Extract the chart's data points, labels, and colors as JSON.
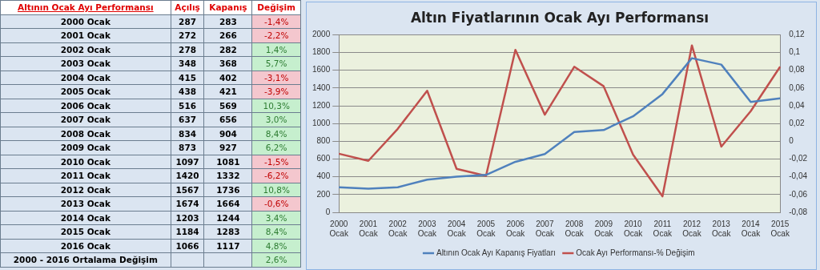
{
  "chart_data": [
    {
      "type": "heatmap",
      "title": "Altının Ocak Ayı Performansı",
      "categories": [
        "Açılış",
        "Kapanış",
        "Değişim"
      ],
      "y_categories": [
        "2000 Ocak",
        "2001 Ocak",
        "2002 Ocak",
        "2003 Ocak",
        "2004 Ocak",
        "2005 Ocak",
        "2006 Ocak",
        "2007 Ocak",
        "2008 Ocak",
        "2009 Ocak",
        "2010 Ocak",
        "2011 Ocak",
        "2012 Ocak",
        "2013 Ocak",
        "2014 Ocak",
        "2015 Ocak",
        "2016 Ocak",
        "2000 - 2016 Ortalama Değişim"
      ],
      "cells": [
        [
          287,
          283,
          -1.4
        ],
        [
          272,
          266,
          -2.2
        ],
        [
          278,
          282,
          1.4
        ],
        [
          348,
          368,
          5.7
        ],
        [
          415,
          402,
          -3.1
        ],
        [
          438,
          421,
          -3.9
        ],
        [
          516,
          569,
          10.3
        ],
        [
          637,
          656,
          3.0
        ],
        [
          834,
          904,
          8.4
        ],
        [
          873,
          927,
          6.2
        ],
        [
          1097,
          1081,
          -1.5
        ],
        [
          1420,
          1332,
          -6.2
        ],
        [
          1567,
          1736,
          10.8
        ],
        [
          1674,
          1664,
          -0.6
        ],
        [
          1203,
          1244,
          3.4
        ],
        [
          1184,
          1283,
          8.4
        ],
        [
          1066,
          1117,
          4.8
        ],
        [
          null,
          null,
          2.6
        ]
      ],
      "cell_labels": [
        [
          "287",
          "283",
          "-1,4%"
        ],
        [
          "272",
          "266",
          "-2,2%"
        ],
        [
          "278",
          "282",
          "1,4%"
        ],
        [
          "348",
          "368",
          "5,7%"
        ],
        [
          "415",
          "402",
          "-3,1%"
        ],
        [
          "438",
          "421",
          "-3,9%"
        ],
        [
          "516",
          "569",
          "10,3%"
        ],
        [
          "637",
          "656",
          "3,0%"
        ],
        [
          "834",
          "904",
          "8,4%"
        ],
        [
          "873",
          "927",
          "6,2%"
        ],
        [
          "1097",
          "1081",
          "-1,5%"
        ],
        [
          "1420",
          "1332",
          "-6,2%"
        ],
        [
          "1567",
          "1736",
          "10,8%"
        ],
        [
          "1674",
          "1664",
          "-0,6%"
        ],
        [
          "1203",
          "1244",
          "3,4%"
        ],
        [
          "1184",
          "1283",
          "8,4%"
        ],
        [
          "1066",
          "1117",
          "4,8%"
        ],
        [
          null,
          null,
          "2,6%"
        ]
      ]
    },
    {
      "type": "line",
      "title": "Altın Fiyatlarının Ocak Ayı Performansı",
      "categories": [
        "2000 Ocak",
        "2001 Ocak",
        "2002 Ocak",
        "2003 Ocak",
        "2004 Ocak",
        "2005 Ocak",
        "2006 Ocak",
        "2007 Ocak",
        "2008 Ocak",
        "2009 Ocak",
        "2010 Ocak",
        "2011 Ocak",
        "2012 Ocak",
        "2013 Ocak",
        "2014 Ocak",
        "2015 Ocak"
      ],
      "series": [
        {
          "name": "Altının Ocak Ayı Kapanış Fiyatları",
          "color": "#4f81bd",
          "values": [
            283,
            266,
            282,
            368,
            402,
            421,
            569,
            656,
            904,
            927,
            1081,
            1332,
            1736,
            1664,
            1244,
            1283
          ]
        },
        {
          "name": "Ocak Ayı Performansı-% Değişim",
          "color": "#c0504d",
          "axis": "y2",
          "values": [
            -0.014,
            -0.022,
            0.014,
            0.057,
            -0.031,
            -0.039,
            0.103,
            0.03,
            0.084,
            0.062,
            -0.015,
            -0.062,
            0.108,
            -0.006,
            0.034,
            0.084
          ]
        }
      ],
      "ylim": [
        0,
        2000
      ],
      "yticks": [
        0,
        200,
        400,
        600,
        800,
        1000,
        1200,
        1400,
        1600,
        1800,
        2000
      ],
      "y2lim": [
        -0.08,
        0.12
      ],
      "y2ticks": [
        {
          "value": -0.08,
          "label": "-0,08"
        },
        {
          "value": -0.06,
          "label": "-0,06"
        },
        {
          "value": -0.04,
          "label": "-0,04"
        },
        {
          "value": -0.02,
          "label": "-0,02"
        },
        0,
        {
          "value": 0.02,
          "label": "0,02"
        },
        {
          "value": 0.04,
          "label": "0,04"
        },
        {
          "value": 0.06,
          "label": "0,06"
        },
        {
          "value": 0.08,
          "label": "0,08"
        },
        {
          "value": 0.1,
          "label": "0,1"
        },
        {
          "value": 0.12,
          "label": "0,12"
        }
      ],
      "grid": "y",
      "legend": "bottom",
      "marker": "none",
      "line_style": "solid"
    }
  ]
}
